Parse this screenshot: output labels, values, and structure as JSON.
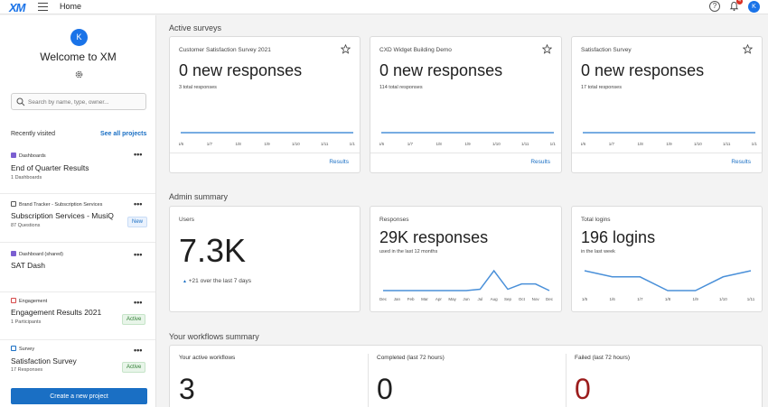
{
  "topbar": {
    "logo": "XM",
    "home": "Home",
    "help": "?",
    "notif_count": "4",
    "avatar": "K"
  },
  "sidebar": {
    "avatar": "K",
    "welcome": "Welcome to XM",
    "search_placeholder": "Search by name, type, owner...",
    "recent_label": "Recently visited",
    "see_all": "See all projects",
    "items": [
      {
        "type": "Dashboards",
        "title": "End of Quarter Results",
        "sub": "1 Dashboards",
        "badge": "",
        "color": "#7b5fd1"
      },
      {
        "type": "Brand Tracker - Subscription Services",
        "title": "Subscription Services - MusiQ",
        "sub": "87 Questions",
        "badge": "New",
        "color": "#555555"
      },
      {
        "type": "Dashboard (shared)",
        "title": "SAT Dash",
        "sub": "",
        "badge": "",
        "color": "#7b5fd1"
      },
      {
        "type": "Engagement",
        "title": "Engagement Results 2021",
        "sub": "1 Participants",
        "badge": "Active",
        "color": "#d64a4a"
      },
      {
        "type": "Survey",
        "title": "Satisfaction Survey",
        "sub": "17 Responses",
        "badge": "Active",
        "color": "#1a6fc4"
      }
    ],
    "create_button": "Create a new project"
  },
  "active_surveys": {
    "title": "Active surveys",
    "cards": [
      {
        "name": "Customer Satisfaction Survey 2021",
        "big": "0 new responses",
        "small": "3 total responses",
        "results": "Results"
      },
      {
        "name": "CXD Widget Building Demo",
        "big": "0 new responses",
        "small": "114 total responses",
        "results": "Results"
      },
      {
        "name": "Satisfaction Survey",
        "big": "0 new responses",
        "small": "17 total responses",
        "results": "Results"
      }
    ],
    "x_ticks": [
      "1/6",
      "1/7",
      "1/8",
      "1/9",
      "1/10",
      "1/11",
      "1/12"
    ]
  },
  "admin_summary": {
    "title": "Admin summary",
    "users": {
      "name": "Users",
      "big": "7.3K",
      "delta": "+21 over the last 7 days"
    },
    "responses": {
      "name": "Responses",
      "big": "29K responses",
      "small": "used in the last 12 months"
    },
    "logins": {
      "name": "Total logins",
      "big": "196 logins",
      "small": "in the last week"
    }
  },
  "workflows": {
    "title": "Your workflows summary",
    "active": {
      "label": "Your active workflows",
      "value": "3",
      "color": "#1f1f1f"
    },
    "completed": {
      "label": "Completed (last 72 hours)",
      "value": "0",
      "color": "#1f1f1f"
    },
    "failed": {
      "label": "Failed (last 72 hours)",
      "value": "0",
      "color": "#9b1c1c"
    }
  },
  "chart_data": [
    {
      "type": "line",
      "title": "Responses",
      "x": [
        "Dec",
        "Jan",
        "Feb",
        "Mar",
        "Apr",
        "May",
        "Jun",
        "Jul",
        "Aug",
        "Sep",
        "Oct",
        "Nov",
        "Dec"
      ],
      "values": [
        0.5,
        0.5,
        0.5,
        0.5,
        0.5,
        0.5,
        0.5,
        1,
        8,
        1,
        3,
        3,
        0.5
      ],
      "color": "#4a90d9"
    },
    {
      "type": "line",
      "title": "Total logins",
      "x": [
        "1/5",
        "1/6",
        "1/7",
        "1/8",
        "1/9",
        "1/10",
        "1/11"
      ],
      "values": [
        28,
        24,
        24,
        15,
        15,
        24,
        28
      ],
      "color": "#4a90d9"
    }
  ]
}
